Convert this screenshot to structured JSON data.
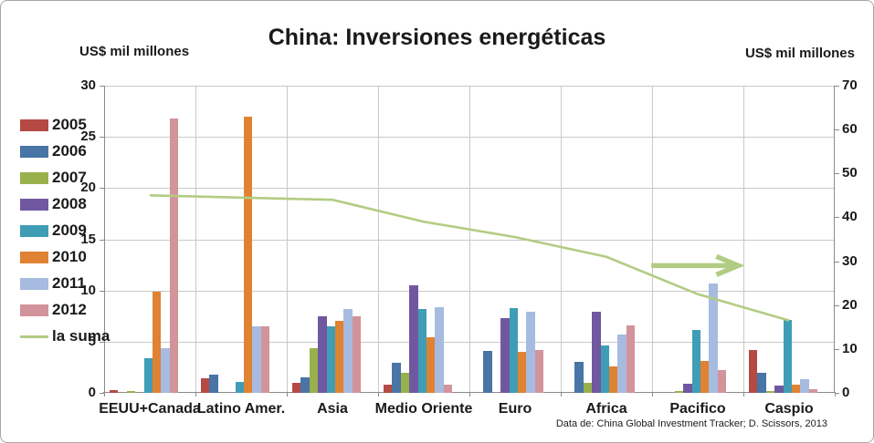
{
  "chart_data": {
    "type": "bar",
    "title": "China: Inversiones energéticas",
    "source": "Data de: China  Global Investment Tracker; D. Scissors,  2013",
    "categories": [
      "EEUU+Canada",
      "Latino Amer.",
      "Asia",
      "Medio Oriente",
      "Euro",
      "Africa",
      "Pacifico",
      "Caspio"
    ],
    "series": [
      {
        "name": "2005",
        "color": "#B54A44",
        "values": [
          0.3,
          1.4,
          1.0,
          0.8,
          0,
          0,
          0,
          4.2
        ]
      },
      {
        "name": "2006",
        "color": "#4874A6",
        "values": [
          0,
          1.8,
          1.5,
          2.9,
          4.1,
          3.0,
          0,
          2.0
        ]
      },
      {
        "name": "2007",
        "color": "#98B14C",
        "values": [
          0.15,
          0,
          4.4,
          2.0,
          0,
          1.0,
          0.2,
          0.2
        ]
      },
      {
        "name": "2008",
        "color": "#7058A0",
        "values": [
          0,
          0,
          7.5,
          10.5,
          7.3,
          7.9,
          0.9,
          0.7
        ]
      },
      {
        "name": "2009",
        "color": "#3F9DB5",
        "values": [
          3.4,
          1.1,
          6.5,
          8.2,
          8.3,
          4.6,
          6.1,
          7.1
        ]
      },
      {
        "name": "2010",
        "color": "#DF8232",
        "values": [
          9.9,
          27.0,
          7.0,
          5.4,
          4.0,
          2.6,
          3.1,
          0.8
        ]
      },
      {
        "name": "2011",
        "color": "#A6BBDF",
        "values": [
          4.4,
          6.5,
          8.2,
          8.4,
          7.9,
          5.7,
          10.7,
          1.3
        ]
      },
      {
        "name": "2012",
        "color": "#D2939B",
        "values": [
          26.8,
          6.5,
          7.5,
          0.8,
          4.2,
          6.6,
          2.2,
          0.4
        ]
      }
    ],
    "line_series": {
      "name": "la suma",
      "color": "#B3CC83",
      "axis": "right",
      "values": [
        45,
        44.5,
        44,
        39,
        35.5,
        31,
        22.5,
        16.5
      ]
    },
    "annotation_arrow": {
      "axis": "right",
      "y_value": 29,
      "x_start_frac": 0.749,
      "x_end_frac": 0.868
    },
    "left_axis": {
      "label": "US$ mil millones",
      "min": 0,
      "max": 30,
      "ticks": [
        30,
        25,
        20,
        15,
        10,
        5,
        0
      ]
    },
    "right_axis": {
      "label": "US$ mil millones",
      "min": 0,
      "max": 70,
      "ticks": [
        70,
        60,
        50,
        40,
        30,
        20,
        10,
        0
      ]
    },
    "grid": "horizontal-and-vertical",
    "legend_position": "left"
  }
}
